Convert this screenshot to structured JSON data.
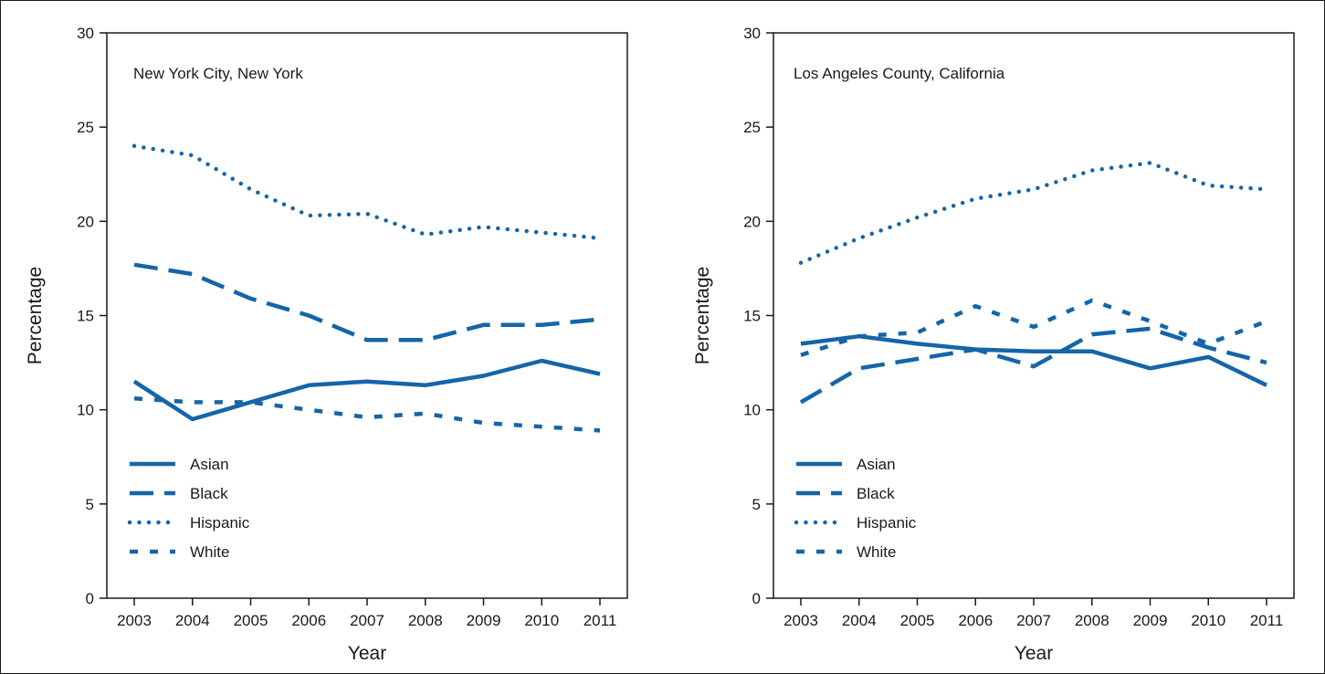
{
  "chart_data": [
    {
      "type": "line",
      "title": "New York City, New York",
      "xlabel": "Year",
      "ylabel": "Percentage",
      "x": [
        "2003",
        "2004",
        "2005",
        "2006",
        "2007",
        "2008",
        "2009",
        "2010",
        "2011"
      ],
      "ylim": [
        0,
        30
      ],
      "yticks": [
        "0",
        "5",
        "10",
        "15",
        "20",
        "25",
        "30"
      ],
      "grid": false,
      "legend_position": "bottom-left",
      "series": [
        {
          "name": "Asian",
          "style": "solid",
          "values": [
            11.5,
            9.5,
            10.4,
            11.3,
            11.5,
            11.3,
            11.8,
            12.6,
            11.9
          ]
        },
        {
          "name": "Black",
          "style": "dashed",
          "values": [
            17.7,
            17.2,
            15.9,
            15.0,
            13.7,
            13.7,
            14.5,
            14.5,
            14.8
          ]
        },
        {
          "name": "Hispanic",
          "style": "dotted",
          "values": [
            24.0,
            23.5,
            21.7,
            20.3,
            20.4,
            19.3,
            19.7,
            19.4,
            19.1
          ]
        },
        {
          "name": "White",
          "style": "short-dashed",
          "values": [
            10.6,
            10.4,
            10.4,
            10.0,
            9.6,
            9.8,
            9.3,
            9.1,
            8.9
          ]
        }
      ]
    },
    {
      "type": "line",
      "title": "Los Angeles County, California",
      "xlabel": "Year",
      "ylabel": "Percentage",
      "x": [
        "2003",
        "2004",
        "2005",
        "2006",
        "2007",
        "2008",
        "2009",
        "2010",
        "2011"
      ],
      "ylim": [
        0,
        30
      ],
      "yticks": [
        "0",
        "5",
        "10",
        "15",
        "20",
        "25",
        "30"
      ],
      "grid": false,
      "legend_position": "bottom-left",
      "series": [
        {
          "name": "Asian",
          "style": "solid",
          "values": [
            13.5,
            13.9,
            13.5,
            13.2,
            13.1,
            13.1,
            12.2,
            12.8,
            11.3
          ]
        },
        {
          "name": "Black",
          "style": "dashed",
          "values": [
            10.4,
            12.2,
            12.7,
            13.2,
            12.3,
            14.0,
            14.3,
            13.3,
            12.5
          ]
        },
        {
          "name": "Hispanic",
          "style": "dotted",
          "values": [
            17.8,
            19.1,
            20.2,
            21.2,
            21.7,
            22.7,
            23.1,
            21.9,
            21.7
          ]
        },
        {
          "name": "White",
          "style": "short-dashed",
          "values": [
            12.9,
            13.9,
            14.1,
            15.5,
            14.4,
            15.8,
            14.7,
            13.5,
            14.7
          ]
        }
      ]
    }
  ],
  "colors": {
    "series": "#1565a8",
    "axis": "#1a1a1a"
  }
}
